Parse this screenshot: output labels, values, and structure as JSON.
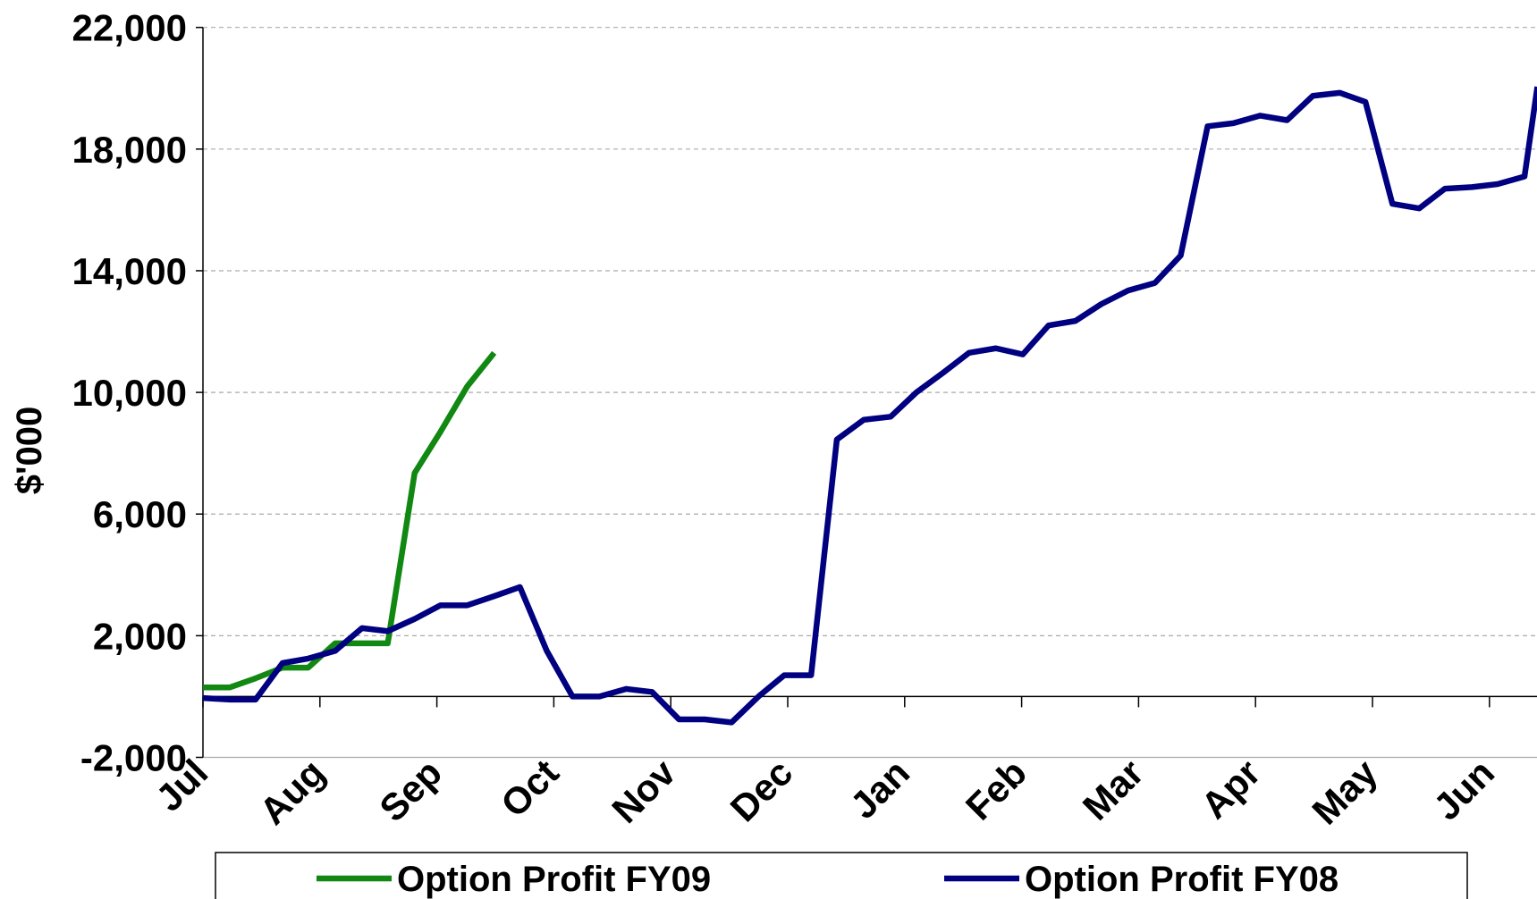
{
  "chart_data": {
    "type": "line",
    "y_label": "$'000",
    "xlim": [
      0,
      12
    ],
    "xticks": [
      {
        "value": 0,
        "label": "Jul"
      },
      {
        "value": 1,
        "label": "Aug"
      },
      {
        "value": 2,
        "label": "Sep"
      },
      {
        "value": 3,
        "label": "Oct"
      },
      {
        "value": 4,
        "label": "Nov"
      },
      {
        "value": 5,
        "label": "Dec"
      },
      {
        "value": 6,
        "label": "Jan"
      },
      {
        "value": 7,
        "label": "Feb"
      },
      {
        "value": 8,
        "label": "Mar"
      },
      {
        "value": 9,
        "label": "Apr"
      },
      {
        "value": 10,
        "label": "May"
      },
      {
        "value": 11,
        "label": "Jun"
      }
    ],
    "ylim": [
      -2000,
      22000
    ],
    "yticks": [
      {
        "value": -2000,
        "label": "-2,000"
      },
      {
        "value": 2000,
        "label": "2,000"
      },
      {
        "value": 6000,
        "label": "6,000"
      },
      {
        "value": 10000,
        "label": "10,000"
      },
      {
        "value": 14000,
        "label": "14,000"
      },
      {
        "value": 18000,
        "label": "18,000"
      },
      {
        "value": 22000,
        "label": "22,000"
      }
    ],
    "grid": true,
    "legend": "bottom",
    "series": [
      {
        "name": "Option Profit FY09",
        "color": "#118811",
        "x": [
          0,
          0.23,
          0.45,
          0.68,
          0.9,
          1.13,
          1.36,
          1.58,
          1.81,
          2.03,
          2.26,
          2.49
        ],
        "values": [
          300,
          300,
          600,
          950,
          950,
          1750,
          1750,
          1750,
          7350,
          8700,
          10200,
          11300
        ]
      },
      {
        "name": "Option Profit FY08",
        "color": "#000080",
        "x": [
          0,
          0.23,
          0.45,
          0.68,
          0.9,
          1.13,
          1.36,
          1.58,
          1.81,
          2.03,
          2.26,
          2.49,
          2.71,
          2.94,
          3.16,
          3.39,
          3.62,
          3.84,
          4.07,
          4.29,
          4.52,
          4.75,
          4.97,
          5.2,
          5.42,
          5.65,
          5.88,
          6.1,
          6.33,
          6.55,
          6.78,
          7.01,
          7.23,
          7.46,
          7.68,
          7.91,
          8.14,
          8.36,
          8.59,
          8.81,
          9.04,
          9.27,
          9.49,
          9.72,
          9.94,
          10.17,
          10.4,
          10.62,
          10.85,
          11.07,
          11.3,
          11.41
        ],
        "values": [
          -50,
          -100,
          -100,
          1100,
          1250,
          1500,
          2250,
          2150,
          2550,
          3000,
          3000,
          3300,
          3600,
          1500,
          0,
          0,
          250,
          150,
          -750,
          -750,
          -850,
          0,
          700,
          700,
          8450,
          9100,
          9200,
          10000,
          10650,
          11300,
          11450,
          11250,
          12200,
          12350,
          12900,
          13350,
          13600,
          14500,
          18750,
          18850,
          19100,
          18950,
          19750,
          19850,
          19550,
          16200,
          16050,
          16700,
          16750,
          16850,
          17100,
          20050
        ]
      }
    ]
  }
}
